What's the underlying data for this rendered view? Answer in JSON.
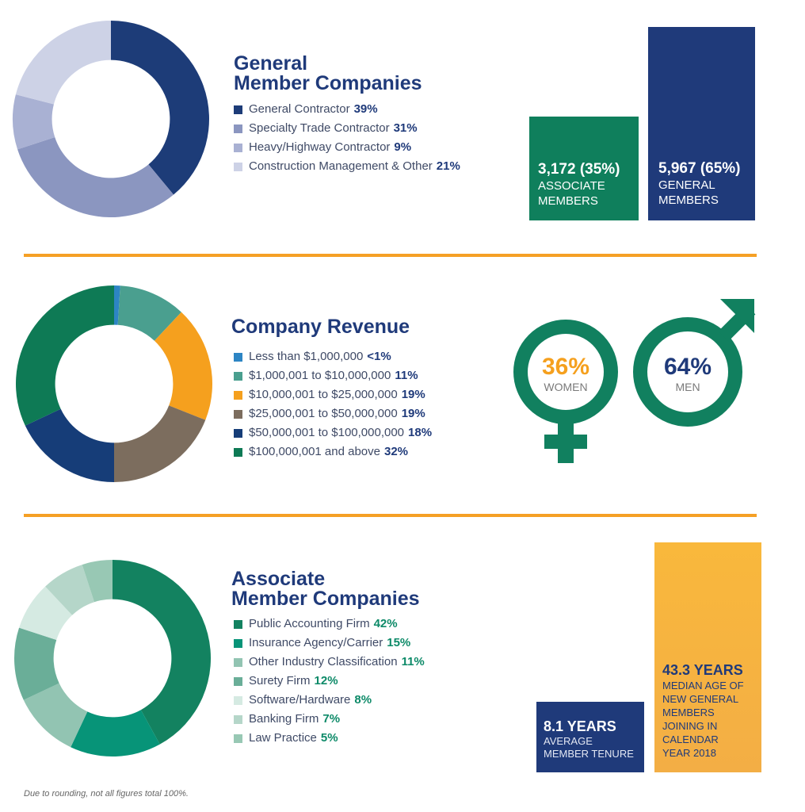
{
  "colors": {
    "navy": "#1f3a7a",
    "green": "#0d7f5a",
    "orange": "#f5a025",
    "gold": "#f9b83c",
    "men_green": "#11805f"
  },
  "general_stats": {
    "associate": {
      "value": "3,172 (35%)",
      "line1": "ASSOCIATE",
      "line2": "MEMBERS",
      "color": "#0f7f5c",
      "percent": 35
    },
    "general": {
      "value": "5,967 (65%)",
      "line1": "GENERAL",
      "line2": "MEMBERS",
      "color": "#1f3a7a",
      "percent": 65
    }
  },
  "gender": {
    "women": {
      "value": "36%",
      "label": "WOMEN",
      "icon": "female-symbol-icon"
    },
    "men": {
      "value": "64%",
      "label": "MEN",
      "icon": "male-symbol-icon"
    }
  },
  "tenure": {
    "average": {
      "value": "8.1 YEARS",
      "lines": [
        "AVERAGE",
        "MEMBER TENURE"
      ]
    },
    "median_age": {
      "value": "43.3 YEARS",
      "lines": [
        "MEDIAN AGE OF",
        "NEW GENERAL",
        "MEMBERS",
        "JOINING IN",
        "CALENDAR",
        "YEAR 2018"
      ]
    }
  },
  "footnote": "Due to rounding, not all figures total 100%.",
  "chart_data": [
    {
      "type": "pie",
      "title_lines": [
        "General",
        "Member Companies"
      ],
      "series": [
        {
          "name": "General Contractor",
          "value": 39,
          "label": "39%",
          "color": "#1d3c78"
        },
        {
          "name": "Specialty Trade Contractor",
          "value": 31,
          "label": "31%",
          "color": "#8b96c0"
        },
        {
          "name": "Heavy/Highway Contractor",
          "value": 9,
          "label": "9%",
          "color": "#a9b1d3"
        },
        {
          "name": "Construction Management & Other",
          "value": 21,
          "label": "21%",
          "color": "#cdd2e6"
        }
      ]
    },
    {
      "type": "pie",
      "title_lines": [
        "Company Revenue"
      ],
      "series": [
        {
          "name": "Less than $1,000,000",
          "value": 1,
          "label": "<1%",
          "color": "#2d85c4"
        },
        {
          "name": "$1,000,001 to $10,000,000",
          "value": 11,
          "label": "11%",
          "color": "#4a9f8f"
        },
        {
          "name": "$10,000,001 to $25,000,000",
          "value": 19,
          "label": "19%",
          "color": "#f5a01e"
        },
        {
          "name": "$25,000,001 to $50,000,000",
          "value": 19,
          "label": "19%",
          "color": "#7c6d5e"
        },
        {
          "name": "$50,000,001 to $100,000,000",
          "value": 18,
          "label": "18%",
          "color": "#163d78"
        },
        {
          "name": "$100,000,001 and above",
          "value": 32,
          "label": "32%",
          "color": "#0e7a55"
        }
      ]
    },
    {
      "type": "pie",
      "title_lines": [
        "Associate",
        "Member Companies"
      ],
      "series": [
        {
          "name": "Public Accounting Firm",
          "value": 42,
          "label": "42%",
          "color": "#138260"
        },
        {
          "name": "Insurance Agency/Carrier",
          "value": 15,
          "label": "15%",
          "color": "#079478"
        },
        {
          "name": "Other Industry Classification",
          "value": 11,
          "label": "11%",
          "color": "#92c4b2"
        },
        {
          "name": "Surety Firm",
          "value": 12,
          "label": "12%",
          "color": "#6aae98"
        },
        {
          "name": "Software/Hardware",
          "value": 8,
          "label": "8%",
          "color": "#d5eae2"
        },
        {
          "name": "Banking Firm",
          "value": 7,
          "label": "7%",
          "color": "#b5d6c9"
        },
        {
          "name": "Law Practice",
          "value": 5,
          "label": "5%",
          "color": "#98c8b4"
        }
      ]
    }
  ]
}
